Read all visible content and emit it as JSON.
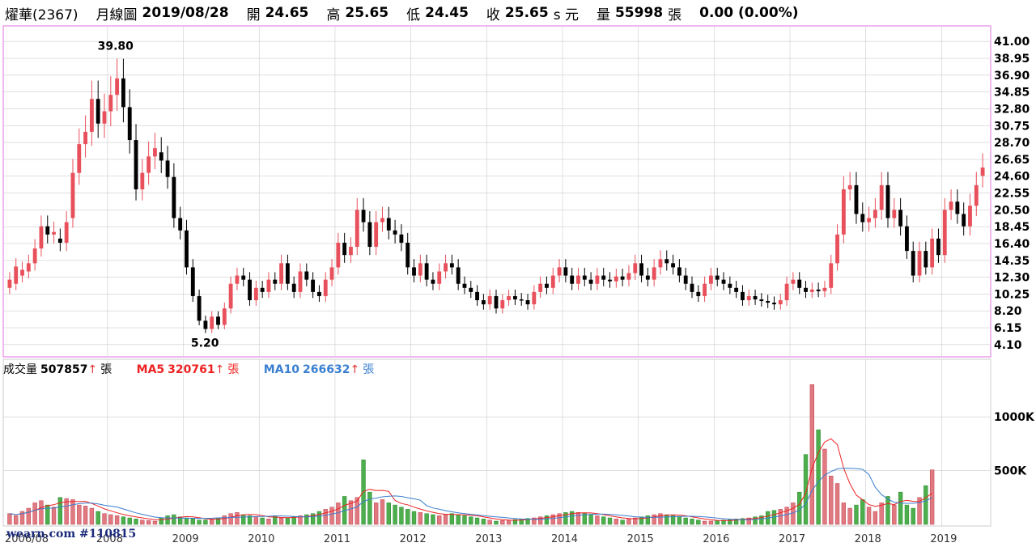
{
  "header": {
    "name": "燿華(2367)",
    "period": "月線圖",
    "date": "2019/08/28",
    "open_label": "開",
    "open": "24.65",
    "high_label": "高",
    "high": "25.65",
    "low_label": "低",
    "low": "24.45",
    "close_label": "收",
    "close": "25.65",
    "unit": "s 元",
    "vol_label": "量",
    "vol": "55998",
    "vol_unit": "張",
    "change": "0.00 (0.00%)"
  },
  "volume_legend": {
    "vol_label": "成交量",
    "vol_value": "507857",
    "ma5_label": "MA5",
    "ma5_value": "320761",
    "ma10_label": "MA10",
    "ma10_value": "266632",
    "unit": "張",
    "arrow": "↑"
  },
  "watermark": {
    "site": "wearn.com",
    "id": "#110815"
  },
  "colors": {
    "up": "#e8505b",
    "down": "#000000",
    "vol_up": "#e07a80",
    "vol_down": "#4cae4c",
    "ma5": "#ee2222",
    "ma10": "#3a7fd0",
    "frame": "#e070e0",
    "grid": "#cccccc"
  },
  "chart_data": [
    {
      "type": "candlestick",
      "title": "燿華(2367) 月線圖",
      "y_ticks": [
        "41.00",
        "38.95",
        "36.90",
        "34.85",
        "32.80",
        "30.75",
        "28.70",
        "26.65",
        "24.60",
        "22.55",
        "20.50",
        "18.45",
        "16.40",
        "14.35",
        "12.30",
        "10.25",
        "8.20",
        "6.15",
        "4.10"
      ],
      "ylim": [
        3.0,
        42.5
      ],
      "x_ticks": [
        "2006/08",
        "2008",
        "2009",
        "2010",
        "2011",
        "2012",
        "2013",
        "2014",
        "2015",
        "2016",
        "2017",
        "2018",
        "2019"
      ],
      "annotations": [
        {
          "label": "39.80",
          "value": 39.8
        },
        {
          "label": "5.20",
          "value": 5.2
        }
      ],
      "series": [
        {
          "points": [
            [
              11.0,
              12.0
            ],
            [
              11.5,
              13.6
            ],
            [
              12.5,
              13.2
            ],
            [
              13.0,
              14.0
            ],
            [
              14.0,
              15.8
            ],
            [
              15.8,
              18.5
            ],
            [
              18.5,
              17.5
            ],
            [
              17.5,
              17.8
            ],
            [
              17.0,
              16.5
            ],
            [
              16.5,
              19.0
            ],
            [
              19.5,
              25.0
            ],
            [
              25.0,
              28.5
            ],
            [
              28.5,
              30.0
            ],
            [
              30.0,
              34.0
            ],
            [
              34.0,
              31.0
            ],
            [
              31.0,
              32.5
            ],
            [
              32.5,
              34.5
            ],
            [
              34.5,
              36.5
            ],
            [
              36.5,
              33.0
            ],
            [
              33.0,
              29.0
            ],
            [
              29.0,
              23.0
            ],
            [
              23.0,
              25.0
            ],
            [
              25.0,
              27.0
            ],
            [
              27.0,
              28.0
            ],
            [
              27.5,
              26.5
            ],
            [
              26.5,
              24.5
            ],
            [
              24.5,
              19.5
            ],
            [
              19.5,
              18.0
            ],
            [
              18.0,
              13.5
            ],
            [
              13.5,
              10.0
            ],
            [
              10.0,
              7.0
            ],
            [
              7.0,
              6.0
            ],
            [
              6.0,
              7.5
            ],
            [
              7.5,
              6.5
            ],
            [
              6.5,
              8.5
            ],
            [
              8.5,
              11.5
            ],
            [
              11.5,
              12.5
            ],
            [
              12.5,
              12.0
            ],
            [
              12.0,
              9.5
            ],
            [
              9.5,
              11.0
            ],
            [
              11.0,
              10.5
            ],
            [
              10.5,
              12.0
            ],
            [
              12.0,
              11.5
            ],
            [
              11.5,
              14.0
            ],
            [
              14.0,
              11.5
            ],
            [
              11.5,
              10.5
            ],
            [
              10.5,
              13.0
            ],
            [
              13.0,
              12.0
            ],
            [
              12.0,
              10.5
            ],
            [
              10.5,
              10.0
            ],
            [
              10.0,
              12.0
            ],
            [
              12.0,
              13.5
            ],
            [
              13.5,
              16.5
            ],
            [
              16.5,
              15.0
            ],
            [
              15.0,
              16.0
            ],
            [
              16.0,
              20.5
            ],
            [
              20.5,
              19.0
            ],
            [
              19.0,
              16.0
            ],
            [
              16.0,
              19.0
            ],
            [
              19.0,
              19.5
            ],
            [
              19.5,
              18.0
            ],
            [
              18.0,
              17.5
            ],
            [
              17.5,
              16.5
            ],
            [
              16.5,
              13.5
            ],
            [
              13.5,
              12.5
            ],
            [
              12.5,
              14.0
            ],
            [
              14.0,
              12.0
            ],
            [
              12.0,
              11.5
            ],
            [
              11.5,
              13.0
            ],
            [
              13.0,
              14.0
            ],
            [
              14.0,
              13.5
            ],
            [
              13.5,
              11.5
            ],
            [
              11.5,
              11.0
            ],
            [
              11.0,
              10.5
            ],
            [
              10.5,
              9.5
            ],
            [
              9.5,
              9.0
            ],
            [
              9.0,
              10.0
            ],
            [
              10.0,
              8.5
            ],
            [
              8.5,
              9.5
            ],
            [
              9.5,
              10.0
            ],
            [
              10.0,
              9.6
            ],
            [
              9.6,
              9.5
            ],
            [
              9.5,
              9.0
            ],
            [
              9.0,
              10.5
            ],
            [
              10.5,
              11.5
            ],
            [
              11.5,
              11.0
            ],
            [
              11.0,
              12.5
            ],
            [
              12.5,
              13.5
            ],
            [
              13.5,
              12.5
            ],
            [
              12.5,
              11.5
            ],
            [
              11.5,
              12.5
            ],
            [
              12.5,
              12.0
            ],
            [
              12.0,
              11.5
            ],
            [
              11.5,
              12.5
            ],
            [
              12.5,
              12.0
            ],
            [
              12.0,
              11.8
            ],
            [
              11.8,
              12.4
            ],
            [
              12.4,
              12.0
            ],
            [
              12.0,
              12.8
            ],
            [
              12.8,
              14.0
            ],
            [
              14.0,
              12.5
            ],
            [
              12.5,
              12.0
            ],
            [
              12.0,
              13.5
            ],
            [
              13.5,
              14.5
            ],
            [
              14.5,
              14.0
            ],
            [
              14.0,
              13.5
            ],
            [
              13.5,
              12.5
            ],
            [
              12.5,
              11.5
            ],
            [
              11.5,
              10.5
            ],
            [
              10.5,
              10.0
            ],
            [
              10.0,
              11.5
            ],
            [
              11.5,
              12.5
            ],
            [
              12.5,
              12.0
            ],
            [
              12.0,
              11.5
            ],
            [
              11.5,
              11.0
            ],
            [
              11.0,
              10.5
            ],
            [
              10.5,
              9.5
            ],
            [
              9.5,
              10.0
            ],
            [
              10.0,
              9.6
            ],
            [
              9.6,
              9.4
            ],
            [
              9.4,
              9.2
            ],
            [
              9.2,
              9.0
            ],
            [
              9.0,
              9.5
            ],
            [
              9.5,
              11.5
            ],
            [
              11.5,
              12.0
            ],
            [
              12.0,
              11.0
            ],
            [
              11.0,
              10.5
            ],
            [
              10.5,
              10.8
            ],
            [
              10.8,
              10.6
            ],
            [
              10.6,
              11.0
            ],
            [
              11.0,
              14.0
            ],
            [
              14.0,
              17.5
            ],
            [
              17.5,
              23.0
            ],
            [
              23.0,
              23.5
            ],
            [
              23.5,
              20.0
            ],
            [
              20.0,
              19.0
            ],
            [
              19.0,
              19.5
            ],
            [
              19.5,
              20.5
            ],
            [
              20.5,
              23.5
            ],
            [
              23.5,
              19.5
            ],
            [
              19.5,
              20.5
            ],
            [
              20.5,
              18.5
            ],
            [
              18.5,
              15.5
            ],
            [
              15.5,
              12.5
            ],
            [
              12.5,
              15.5
            ],
            [
              15.5,
              13.5
            ],
            [
              13.5,
              17.0
            ],
            [
              17.0,
              15.0
            ],
            [
              15.0,
              20.5
            ],
            [
              20.5,
              21.5
            ],
            [
              21.5,
              20.0
            ],
            [
              20.0,
              18.5
            ],
            [
              18.5,
              21.0
            ],
            [
              21.0,
              23.5
            ],
            [
              24.65,
              25.65
            ]
          ]
        }
      ]
    },
    {
      "type": "bar",
      "title": "成交量",
      "y_ticks": [
        "1000K",
        "500K"
      ],
      "ylim": [
        0,
        1400
      ],
      "series": [
        {
          "name": "成交量",
          "values": [
            100,
            80,
            120,
            150,
            200,
            220,
            180,
            160,
            250,
            240,
            230,
            180,
            170,
            150,
            120,
            100,
            90,
            80,
            70,
            60,
            50,
            40,
            35,
            30,
            60,
            80,
            90,
            70,
            60,
            50,
            40,
            40,
            50,
            60,
            80,
            100,
            110,
            90,
            80,
            70,
            60,
            50,
            80,
            60,
            60,
            70,
            80,
            90,
            100,
            120,
            140,
            160,
            200,
            260,
            220,
            250,
            600,
            300,
            200,
            230,
            200,
            180,
            160,
            140,
            120,
            110,
            100,
            90,
            80,
            90,
            100,
            90,
            80,
            70,
            60,
            50,
            40,
            30,
            35,
            40,
            45,
            50,
            55,
            60,
            70,
            80,
            90,
            100,
            110,
            120,
            110,
            100,
            90,
            80,
            70,
            60,
            50,
            40,
            50,
            60,
            70,
            80,
            90,
            100,
            90,
            80,
            70,
            60,
            50,
            40,
            30,
            30,
            35,
            40,
            45,
            50,
            55,
            60,
            70,
            80,
            120,
            130,
            140,
            160,
            200,
            300,
            650,
            1300,
            880,
            700,
            450,
            380,
            200,
            150,
            180,
            230,
            160,
            120,
            200,
            260,
            180,
            300,
            180,
            150,
            250,
            360,
            507
          ]
        },
        {
          "name": "MA5",
          "values": []
        },
        {
          "name": "MA10",
          "values": []
        }
      ]
    }
  ]
}
